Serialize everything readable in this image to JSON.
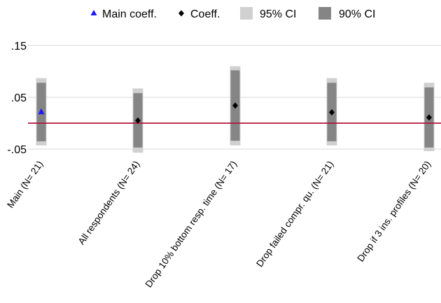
{
  "colors": {
    "ci95": "#d0d0d0",
    "ci90": "#858585",
    "main_marker": "#1a1aff",
    "coef_marker": "#000000",
    "zero_line": "#b0163d",
    "grid": "#e6e6e6"
  },
  "chart_data": {
    "type": "scatter",
    "title": "",
    "xlabel": "",
    "ylabel": "",
    "ylim": [
      -0.05,
      0.17
    ],
    "yticks": [
      {
        "value": 0.15,
        "label": ".15"
      },
      {
        "value": 0.05,
        "label": ".05"
      },
      {
        "value": -0.05,
        "label": "-.05"
      }
    ],
    "grid": true,
    "reference_line": 0,
    "legend": {
      "position": "top",
      "items": [
        {
          "label": "Main coeff.",
          "symbol": "triangle",
          "color": "#1a1aff"
        },
        {
          "label": "Coeff.",
          "symbol": "diamond",
          "color": "#000000"
        },
        {
          "label": "95% CI",
          "symbol": "square",
          "color": "#d0d0d0"
        },
        {
          "label": "90% CI",
          "symbol": "square",
          "color": "#858585"
        }
      ]
    },
    "categories": [
      "Main (N= 21)",
      "All respondents (N= 24)",
      "Drop 10% bottom resp. time (N= 17)",
      "Drop failed compr. qu. (N= 21)",
      "Drop if 3 ins. profiles (N= 20)"
    ],
    "series": [
      {
        "name": "Main coeff.",
        "marker": "triangle",
        "points": [
          {
            "category": 0,
            "y": 0.022
          }
        ]
      },
      {
        "name": "Coeff.",
        "marker": "diamond",
        "points": [
          {
            "category": 1,
            "y": 0.005
          },
          {
            "category": 2,
            "y": 0.034
          },
          {
            "category": 3,
            "y": 0.021
          },
          {
            "category": 4,
            "y": 0.011
          }
        ]
      }
    ],
    "ci95": [
      [
        -0.043,
        0.087
      ],
      [
        -0.057,
        0.067
      ],
      [
        -0.043,
        0.11
      ],
      [
        -0.043,
        0.087
      ],
      [
        -0.054,
        0.078
      ]
    ],
    "ci90": [
      [
        -0.035,
        0.078
      ],
      [
        -0.047,
        0.058
      ],
      [
        -0.034,
        0.102
      ],
      [
        -0.035,
        0.078
      ],
      [
        -0.047,
        0.069
      ]
    ]
  }
}
